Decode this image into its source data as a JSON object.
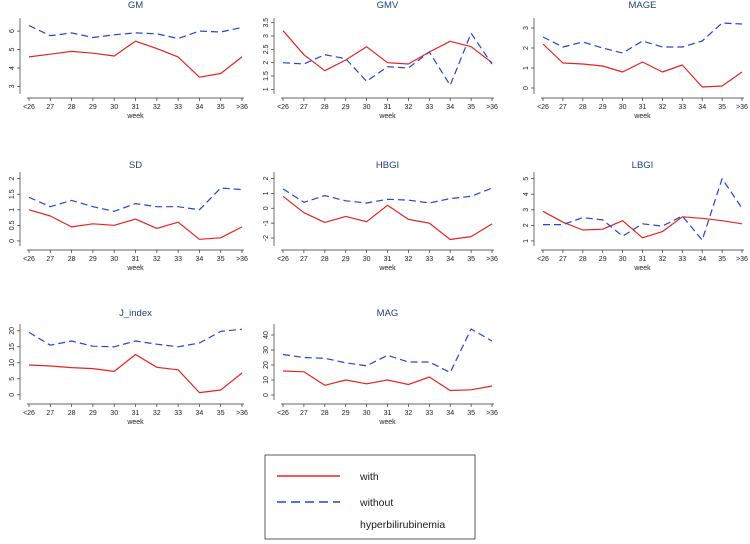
{
  "chart_data": [
    {
      "type": "line",
      "title": "GM",
      "xlabel": "week",
      "categories": [
        "<26",
        "27",
        "28",
        "29",
        "30",
        "31",
        "32",
        "33",
        "34",
        "35",
        ">36"
      ],
      "yticks": [
        3,
        4,
        5,
        6
      ],
      "ylim": [
        2.7,
        6.6
      ],
      "series": [
        {
          "name": "with",
          "values": [
            4.6,
            4.75,
            4.9,
            4.8,
            4.65,
            5.45,
            5.05,
            4.6,
            3.5,
            3.7,
            4.6
          ]
        },
        {
          "name": "without",
          "values": [
            6.3,
            5.75,
            5.9,
            5.65,
            5.8,
            5.9,
            5.85,
            5.6,
            6.0,
            5.95,
            6.2
          ]
        }
      ]
    },
    {
      "type": "line",
      "title": "GMV",
      "xlabel": "week",
      "categories": [
        "<26",
        "27",
        "28",
        "29",
        "30",
        "31",
        "32",
        "33",
        "34",
        "35",
        ">36"
      ],
      "yticks": [
        1,
        1.5,
        2,
        2.5,
        3,
        3.5
      ],
      "ylim": [
        0.9,
        3.6
      ],
      "series": [
        {
          "name": "with",
          "values": [
            3.2,
            2.3,
            1.7,
            2.1,
            2.6,
            2.0,
            1.95,
            2.4,
            2.8,
            2.6,
            2.0
          ]
        },
        {
          "name": "without",
          "values": [
            2.0,
            1.95,
            2.3,
            2.15,
            1.3,
            1.85,
            1.8,
            2.4,
            1.15,
            3.1,
            1.95
          ]
        }
      ]
    },
    {
      "type": "line",
      "title": "MAGE",
      "xlabel": "week",
      "categories": [
        "<26",
        "27",
        "28",
        "29",
        "30",
        "31",
        "32",
        "33",
        "34",
        "35",
        ">36"
      ],
      "yticks": [
        0,
        1,
        2,
        3
      ],
      "ylim": [
        -0.2,
        3.4
      ],
      "series": [
        {
          "name": "with",
          "values": [
            2.2,
            1.25,
            1.2,
            1.1,
            0.8,
            1.3,
            0.8,
            1.15,
            0.05,
            0.1,
            0.8
          ]
        },
        {
          "name": "without",
          "values": [
            2.55,
            2.05,
            2.3,
            2.0,
            1.75,
            2.35,
            2.05,
            2.05,
            2.35,
            3.25,
            3.2
          ]
        }
      ]
    },
    {
      "type": "line",
      "title": "SD",
      "xlabel": "week",
      "categories": [
        "<26",
        "27",
        "28",
        "29",
        "30",
        "31",
        "32",
        "33",
        "34",
        "35",
        ">36"
      ],
      "yticks": [
        0,
        0.5,
        1,
        1.5,
        2
      ],
      "ylim": [
        -0.1,
        2.15
      ],
      "series": [
        {
          "name": "with",
          "values": [
            1.0,
            0.8,
            0.45,
            0.55,
            0.5,
            0.7,
            0.4,
            0.6,
            0.05,
            0.1,
            0.45
          ]
        },
        {
          "name": "without",
          "values": [
            1.4,
            1.1,
            1.3,
            1.1,
            0.95,
            1.2,
            1.1,
            1.1,
            1.0,
            1.7,
            1.65
          ]
        }
      ]
    },
    {
      "type": "line",
      "title": "HBGI",
      "xlabel": "week",
      "categories": [
        "<26",
        "27",
        "28",
        "29",
        "30",
        "31",
        "32",
        "33",
        "34",
        "35",
        ">36"
      ],
      "yticks": [
        -2,
        -1,
        0,
        1,
        2
      ],
      "ylim": [
        -2.4,
        2.3
      ],
      "series": [
        {
          "name": "with",
          "values": [
            0.8,
            -0.3,
            -0.95,
            -0.55,
            -0.9,
            0.2,
            -0.75,
            -1.0,
            -2.1,
            -1.9,
            -1.05
          ]
        },
        {
          "name": "without",
          "values": [
            1.3,
            0.4,
            0.85,
            0.5,
            0.35,
            0.6,
            0.55,
            0.35,
            0.65,
            0.8,
            1.35
          ]
        }
      ]
    },
    {
      "type": "line",
      "title": "LBGI",
      "xlabel": "week",
      "categories": [
        "<26",
        "27",
        "28",
        "29",
        "30",
        "31",
        "32",
        "33",
        "34",
        "35",
        ">36"
      ],
      "yticks": [
        1,
        2,
        3,
        4,
        5
      ],
      "ylim": [
        0.8,
        5.3
      ],
      "series": [
        {
          "name": "with",
          "values": [
            2.9,
            2.2,
            1.7,
            1.75,
            2.3,
            1.2,
            1.6,
            2.55,
            2.45,
            2.3,
            2.1
          ]
        },
        {
          "name": "without",
          "values": [
            2.05,
            2.05,
            2.5,
            2.35,
            1.3,
            2.1,
            1.95,
            2.6,
            1.05,
            5.0,
            3.1
          ]
        }
      ]
    },
    {
      "type": "line",
      "title": "J_index",
      "xlabel": "week",
      "categories": [
        "<26",
        "27",
        "28",
        "29",
        "30",
        "31",
        "32",
        "33",
        "34",
        "35",
        ">36"
      ],
      "yticks": [
        0,
        5,
        10,
        15,
        20
      ],
      "ylim": [
        -1,
        21.5
      ],
      "series": [
        {
          "name": "with",
          "values": [
            9.3,
            9.0,
            8.5,
            8.2,
            7.3,
            12.6,
            8.6,
            7.8,
            0.7,
            1.5,
            6.8
          ]
        },
        {
          "name": "without",
          "values": [
            19.5,
            15.5,
            16.8,
            15.2,
            15.0,
            16.8,
            15.8,
            15.0,
            16.2,
            19.8,
            20.5
          ]
        }
      ]
    },
    {
      "type": "line",
      "title": "MAG",
      "xlabel": "week",
      "categories": [
        "<26",
        "27",
        "28",
        "29",
        "30",
        "31",
        "32",
        "33",
        "34",
        "35",
        ">36"
      ],
      "yticks": [
        0,
        10,
        20,
        30,
        40
      ],
      "ylim": [
        -2,
        46
      ],
      "series": [
        {
          "name": "with",
          "values": [
            16,
            15.5,
            6.5,
            10,
            7.5,
            10,
            7,
            12,
            3,
            3.5,
            6
          ]
        },
        {
          "name": "without",
          "values": [
            27,
            25,
            24.5,
            21.5,
            19.5,
            26.5,
            22,
            22,
            15,
            44,
            36
          ]
        }
      ]
    }
  ],
  "legend": {
    "entries": [
      {
        "label": "with",
        "color": "#e8231f",
        "style": "solid"
      },
      {
        "label": "without",
        "color": "#2244d8",
        "style": "dashed"
      }
    ],
    "caption": "hyperbilirubinemia"
  }
}
